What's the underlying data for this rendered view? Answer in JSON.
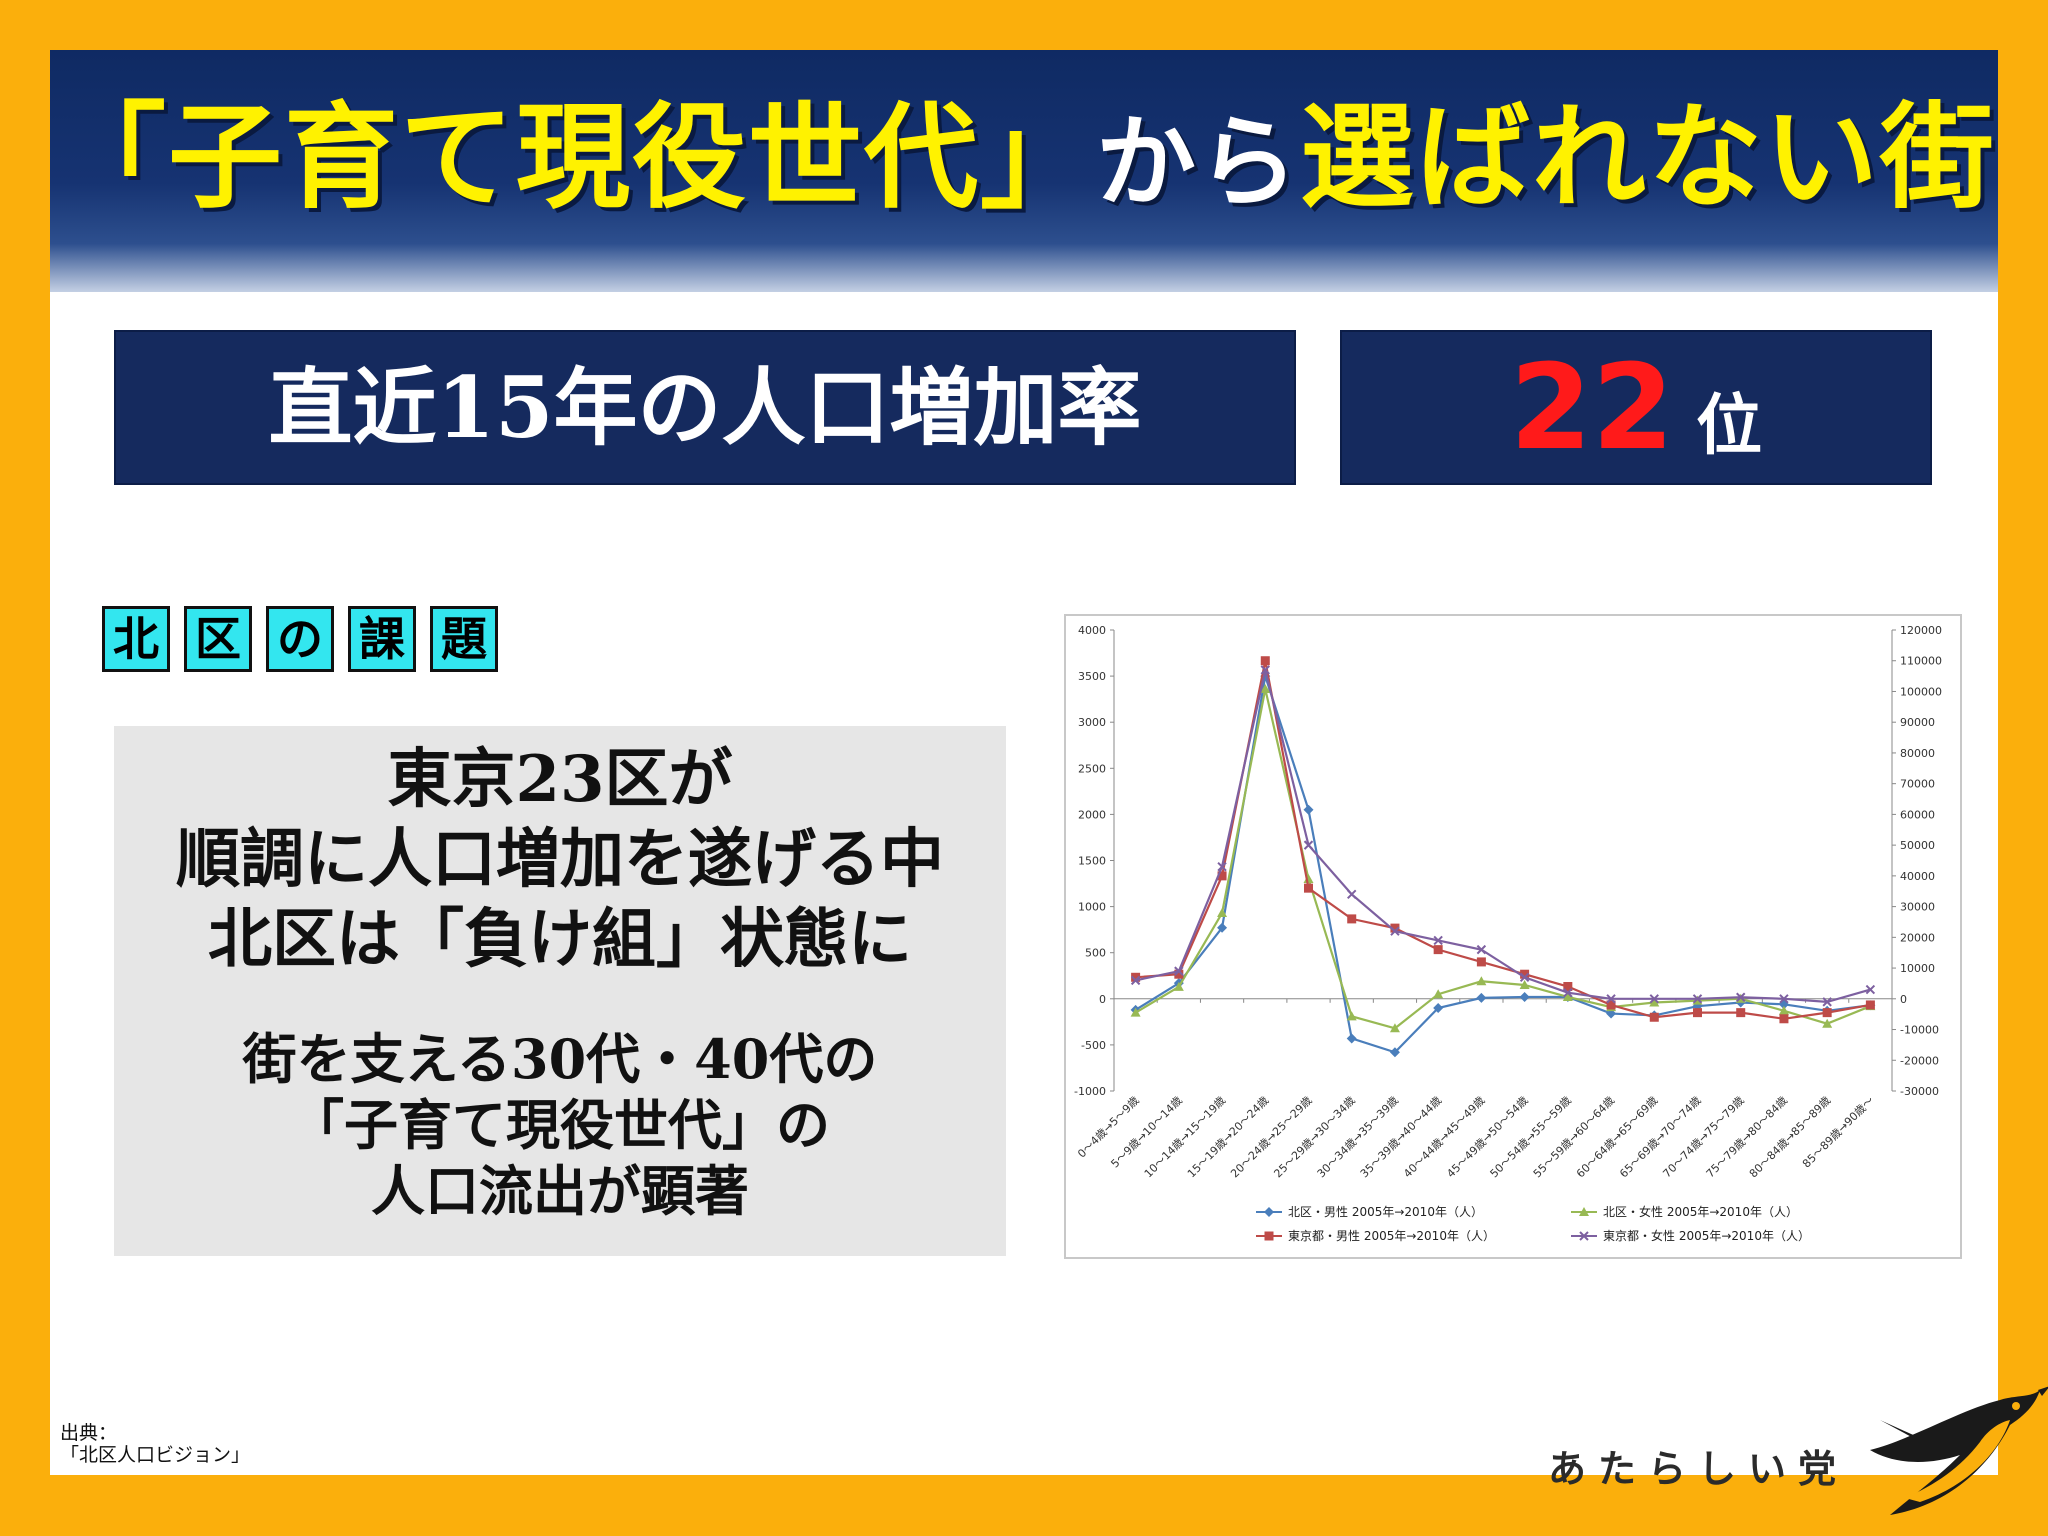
{
  "title": {
    "part1": "「子育て現役世代」",
    "part2": "から",
    "part3": "選ばれない街"
  },
  "stat": {
    "label": "直近15年の人口増加率",
    "rank_number": "22",
    "rank_suffix": "位"
  },
  "tags": [
    "北",
    "区",
    "の",
    "課",
    "題"
  ],
  "issue": {
    "lines": [
      "東京23区が",
      "順調に人口増加を遂げる中",
      "北区は「負け組」状態に"
    ],
    "sub_lines": [
      "街を支える30代・40代の",
      "「子育て現役世代」の",
      "人口流出が顕著"
    ]
  },
  "source": {
    "line1": "出典：",
    "line2": "「北区人口ビジョン」"
  },
  "brand": "あたらしい党",
  "colors": {
    "background": "#fbaf0c",
    "banner_navy": "#152a5e",
    "title_yellow": "#fff200",
    "rank_red": "#ff1a1a",
    "tag_cyan": "#33e6ef",
    "issue_gray": "#e6e6e6"
  },
  "chart_data": {
    "type": "line",
    "title": "",
    "xlabel": "",
    "ylabel": "",
    "grid": false,
    "legend_position": "bottom",
    "y_left": {
      "range": [
        -1000,
        4000
      ],
      "ticks": [
        4000,
        3500,
        3000,
        2500,
        2000,
        1500,
        1000,
        500,
        0,
        -500,
        -1000
      ]
    },
    "y_right": {
      "range": [
        -30000,
        120000
      ],
      "ticks": [
        120000,
        110000,
        100000,
        90000,
        80000,
        70000,
        60000,
        50000,
        40000,
        30000,
        20000,
        10000,
        0,
        -10000,
        -20000,
        -30000
      ]
    },
    "categories": [
      "0～4歳→5～9歳",
      "5～9歳→10～14歳",
      "10～14歳→15～19歳",
      "15～19歳→20～24歳",
      "20～24歳→25～29歳",
      "25～29歳→30～34歳",
      "30～34歳→35～39歳",
      "35～39歳→40～44歳",
      "40～44歳→45～49歳",
      "45～49歳→50～54歳",
      "50～54歳→55～59歳",
      "55～59歳→60～64歳",
      "60～64歳→65～69歳",
      "65～69歳→70～74歳",
      "70～74歳→75～79歳",
      "75～79歳→80～84歳",
      "80～84歳→85～89歳",
      "85～89歳→90歳～"
    ],
    "series": [
      {
        "name": "北区・男性 2005年→2010年（人）",
        "axis": "left",
        "color": "#4a7ebb",
        "marker": "diamond",
        "values": [
          -120,
          170,
          770,
          3500,
          2050,
          -430,
          -580,
          -100,
          10,
          20,
          20,
          -160,
          -180,
          -80,
          -40,
          -60,
          -130,
          -70
        ]
      },
      {
        "name": "北区・女性 2005年→2010年（人）",
        "axis": "left",
        "color": "#98b954",
        "marker": "triangle",
        "values": [
          -150,
          130,
          930,
          3360,
          1300,
          -190,
          -320,
          50,
          190,
          150,
          20,
          -90,
          -40,
          -20,
          0,
          -130,
          -270,
          -80
        ]
      },
      {
        "name": "東京都・男性 2005年→2010年（人）",
        "axis": "right",
        "color": "#be4b48",
        "marker": "square",
        "values": [
          7000,
          8000,
          40000,
          110000,
          36000,
          26000,
          23000,
          16000,
          12000,
          8000,
          4000,
          -2000,
          -6000,
          -4500,
          -4500,
          -6500,
          -4500,
          -2000
        ]
      },
      {
        "name": "東京都・女性 2005年→2010年（人）",
        "axis": "right",
        "color": "#7d60a0",
        "marker": "x",
        "values": [
          6000,
          9000,
          43000,
          107000,
          50000,
          34000,
          22000,
          19000,
          16000,
          7000,
          2000,
          0,
          0,
          0,
          500,
          0,
          -1000,
          3000
        ]
      }
    ]
  }
}
